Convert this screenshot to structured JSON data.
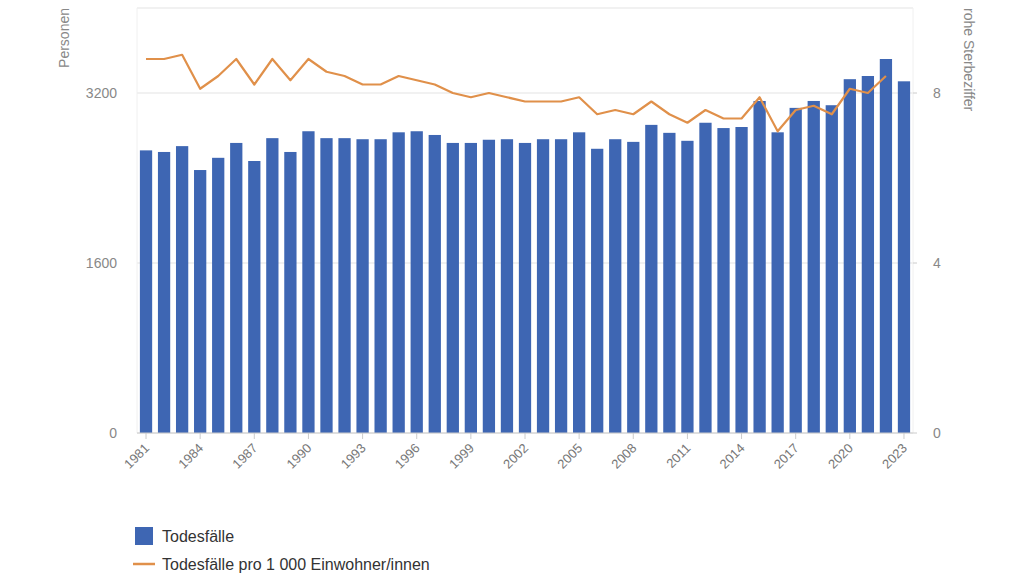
{
  "chart_data": {
    "type": "bar",
    "y_label": "Personen",
    "y2_label": "rohe Sterbeziffer",
    "categories": [
      "1981",
      null,
      null,
      "1984",
      null,
      null,
      "1987",
      null,
      null,
      "1990",
      null,
      null,
      "1993",
      null,
      null,
      "1996",
      null,
      null,
      "1999",
      null,
      null,
      "2002",
      null,
      null,
      "2005",
      null,
      null,
      "2008",
      null,
      null,
      "2011",
      null,
      null,
      "2014",
      null,
      null,
      "2017",
      null,
      null,
      "2020",
      null,
      null,
      "2023"
    ],
    "series": [
      {
        "name": "Todesfälle",
        "type": "bar",
        "color": "#3e66b3",
        "values": [
          2660,
          2645,
          2700,
          2475,
          2590,
          2730,
          2560,
          2775,
          2645,
          2840,
          2775,
          2775,
          2765,
          2765,
          2830,
          2840,
          2805,
          2730,
          2730,
          2760,
          2765,
          2730,
          2765,
          2765,
          2830,
          2675,
          2765,
          2740,
          2900,
          2825,
          2750,
          2920,
          2870,
          2880,
          3125,
          2830,
          3060,
          3125,
          3085,
          3330,
          3360,
          3520,
          3310
        ]
      },
      {
        "name": "Todesfälle pro 1 000 Einwohner/innen",
        "type": "line",
        "axis": "y2",
        "color": "#e0904a",
        "values": [
          8.8,
          8.8,
          8.9,
          8.1,
          8.4,
          8.8,
          8.2,
          8.8,
          8.3,
          8.8,
          8.5,
          8.4,
          8.2,
          8.2,
          8.4,
          8.3,
          8.2,
          8.0,
          7.9,
          8.0,
          7.9,
          7.8,
          7.8,
          7.8,
          7.9,
          7.5,
          7.6,
          7.5,
          7.8,
          7.5,
          7.3,
          7.6,
          7.4,
          7.4,
          7.9,
          7.1,
          7.6,
          7.7,
          7.5,
          8.1,
          8.0,
          8.4,
          null
        ]
      }
    ],
    "ylim": [
      0,
      4000
    ],
    "yticks": [
      0,
      1600,
      3200
    ],
    "y2lim": [
      0,
      10
    ],
    "y2ticks": [
      0,
      4,
      8
    ],
    "grid": true,
    "legend": "bottom-left"
  }
}
